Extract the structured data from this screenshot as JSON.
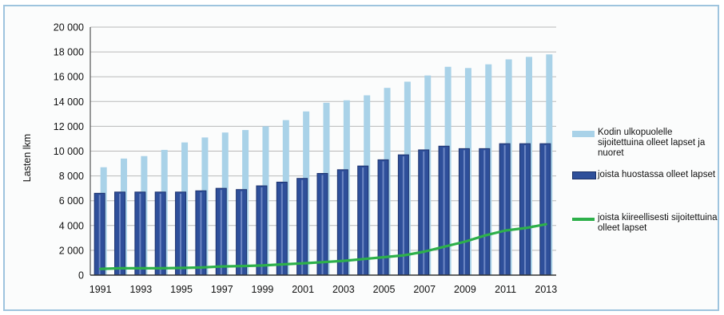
{
  "chart_data": {
    "type": "bar",
    "ylabel": "Lasten lkm",
    "ylim": [
      0,
      20000
    ],
    "yticks": [
      0,
      2000,
      4000,
      6000,
      8000,
      10000,
      12000,
      14000,
      16000,
      18000,
      20000
    ],
    "ytick_labels": [
      "0",
      "2 000",
      "4 000",
      "6 000",
      "8 000",
      "10 000",
      "12 000",
      "14 000",
      "16 000",
      "18 000",
      "20 000"
    ],
    "categories": [
      "1991",
      "1992",
      "1993",
      "1994",
      "1995",
      "1996",
      "1997",
      "1998",
      "1999",
      "2000",
      "2001",
      "2002",
      "2003",
      "2004",
      "2005",
      "2006",
      "2007",
      "2008",
      "2009",
      "2010",
      "2011",
      "2012",
      "2013"
    ],
    "xtick_labels": [
      "1991",
      "1993",
      "1995",
      "1997",
      "1999",
      "2001",
      "2003",
      "2005",
      "2007",
      "2009",
      "2011",
      "2013"
    ],
    "grid": true,
    "legend_position": "right",
    "series": [
      {
        "name": "Kodin ulkopuolelle sijoitettuina olleet lapset  ja nuoret",
        "kind": "bar",
        "color": "#a9d2e8",
        "values": [
          8700,
          9400,
          9600,
          10100,
          10700,
          11100,
          11500,
          11700,
          12000,
          12500,
          13200,
          13900,
          14100,
          14500,
          15100,
          15600,
          16100,
          16800,
          16700,
          17000,
          17400,
          17600,
          17800
        ]
      },
      {
        "name": "joista huostassa olleet lapset",
        "kind": "bar",
        "color": "#2e4f9a",
        "values": [
          6600,
          6700,
          6700,
          6700,
          6700,
          6800,
          7000,
          6900,
          7200,
          7500,
          7800,
          8200,
          8500,
          8800,
          9300,
          9700,
          10100,
          10400,
          10200,
          10200,
          10600,
          10600,
          10600
        ]
      },
      {
        "name": "joista kiireellisesti sijoitettuina olleet lapset",
        "kind": "line",
        "color": "#2db04a",
        "values": [
          500,
          550,
          550,
          550,
          580,
          620,
          700,
          730,
          780,
          870,
          950,
          1050,
          1150,
          1300,
          1450,
          1600,
          1900,
          2300,
          2700,
          3200,
          3600,
          3800,
          4100
        ]
      }
    ]
  }
}
